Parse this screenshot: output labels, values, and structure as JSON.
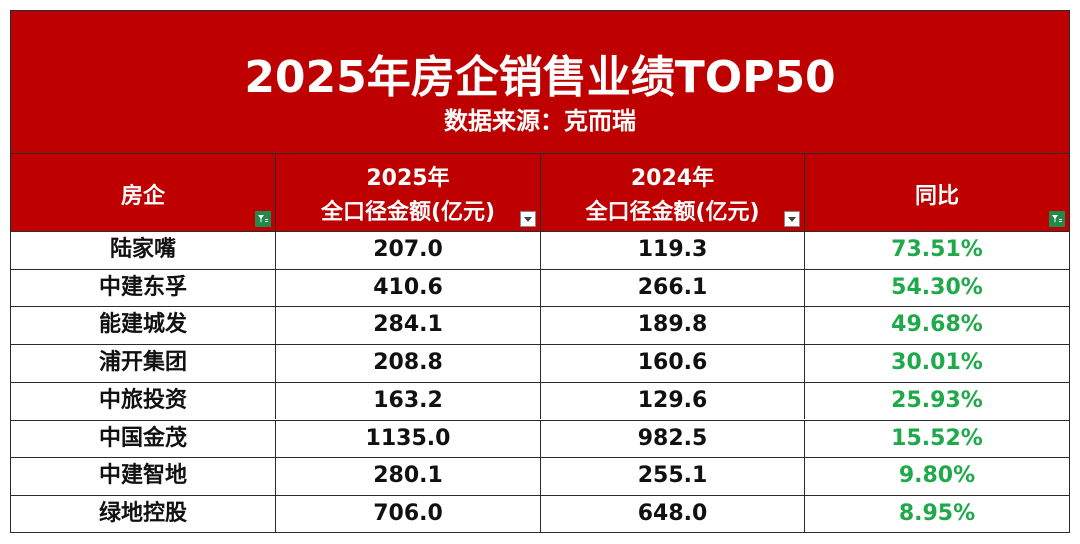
{
  "header": {
    "title": "2025年房企销售业绩TOP50",
    "subtitle": "数据来源：克而瑞"
  },
  "columns": {
    "company": "房企",
    "y2025_line1": "2025年",
    "y2025_line2": "全口径金额(亿元)",
    "y2024_line1": "2024年",
    "y2024_line2": "全口径金额(亿元)",
    "yoy": "同比"
  },
  "rows": [
    {
      "company": "陆家嘴",
      "y2025": "207.0",
      "y2024": "119.3",
      "yoy": "73.51%"
    },
    {
      "company": "中建东孚",
      "y2025": "410.6",
      "y2024": "266.1",
      "yoy": "54.30%"
    },
    {
      "company": "能建城发",
      "y2025": "284.1",
      "y2024": "189.8",
      "yoy": "49.68%"
    },
    {
      "company": "浦开集团",
      "y2025": "208.8",
      "y2024": "160.6",
      "yoy": "30.01%"
    },
    {
      "company": "中旅投资",
      "y2025": "163.2",
      "y2024": "129.6",
      "yoy": "25.93%"
    },
    {
      "company": "中国金茂",
      "y2025": "1135.0",
      "y2024": "982.5",
      "yoy": "15.52%"
    },
    {
      "company": "中建智地",
      "y2025": "280.1",
      "y2024": "255.1",
      "yoy": "9.80%"
    },
    {
      "company": "绿地控股",
      "y2025": "706.0",
      "y2024": "648.0",
      "yoy": "8.95%"
    }
  ],
  "colors": {
    "header_bg": "#bf0000",
    "positive": "#1fa94a"
  },
  "icons": {
    "filter_active": "filter-active-icon",
    "filter_dropdown": "dropdown-arrow-icon"
  }
}
